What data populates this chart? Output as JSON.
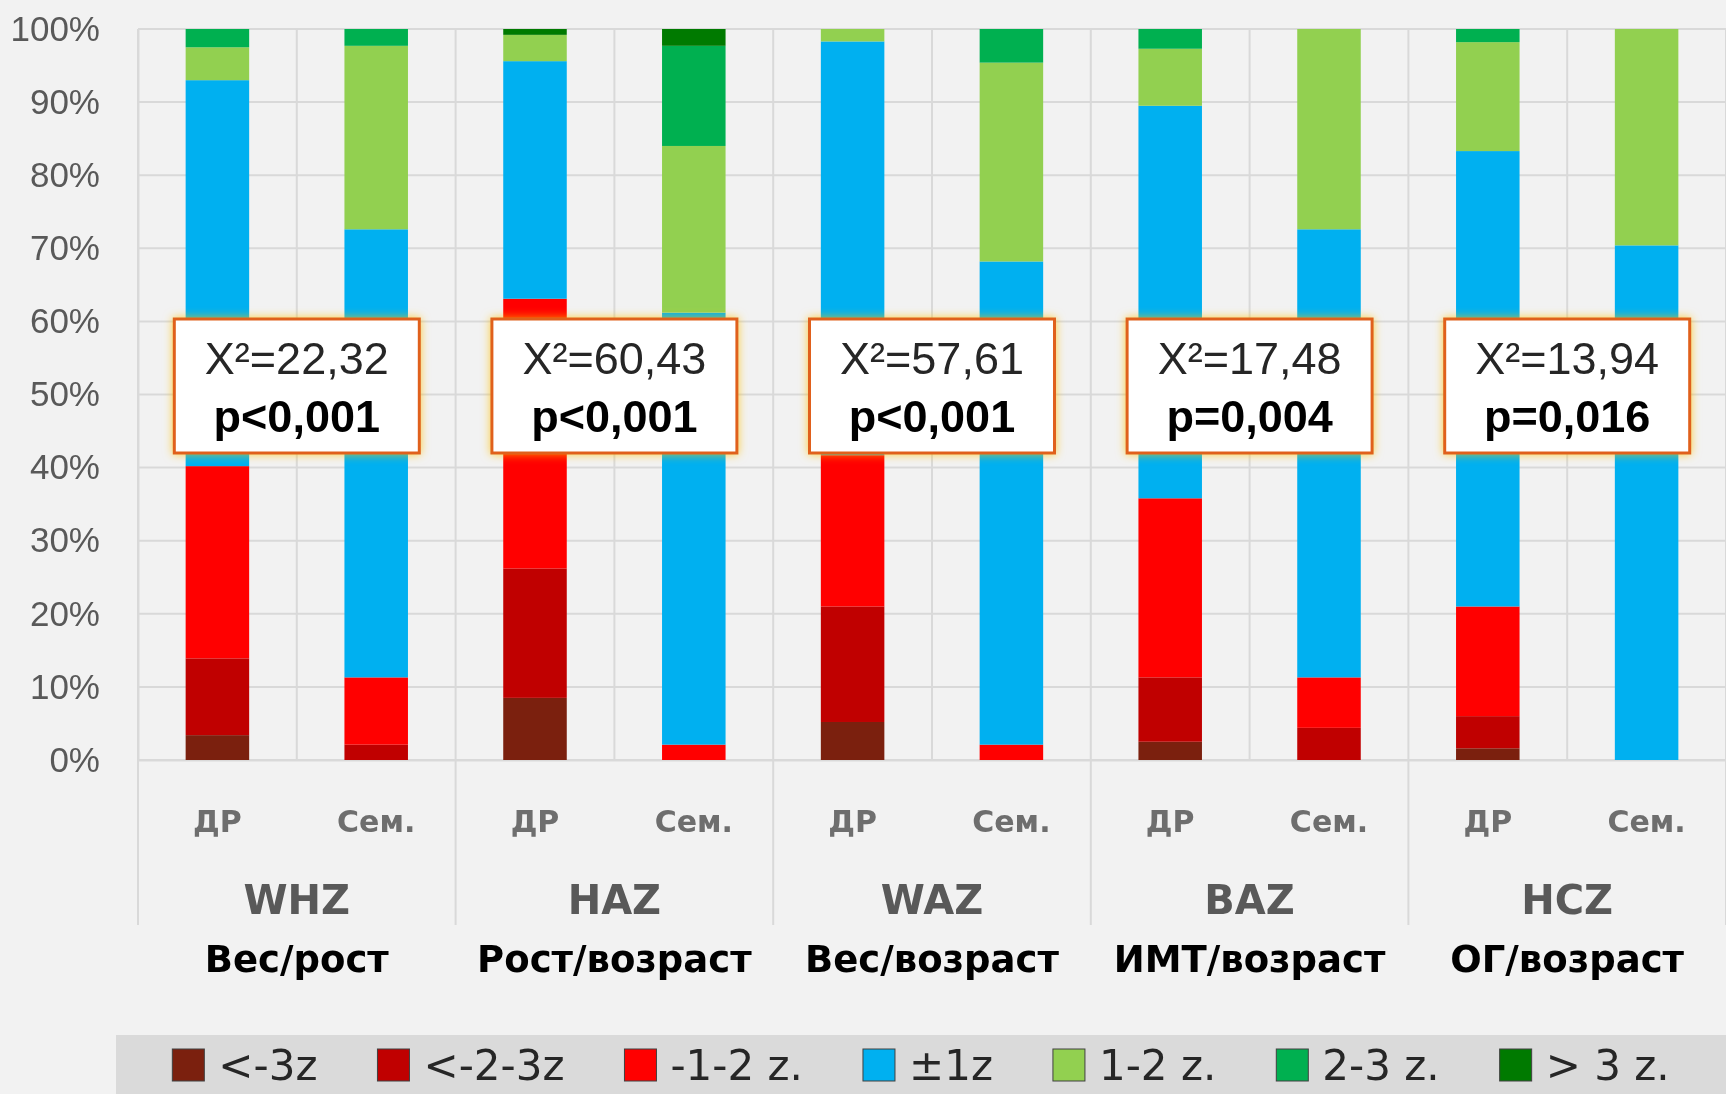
{
  "chart_data": {
    "type": "bar",
    "stacked": true,
    "categories": [
      "ДР",
      "Сем.",
      "ДР",
      "Сем.",
      "ДР",
      "Сем.",
      "ДР",
      "Сем.",
      "ДР",
      "Сем."
    ],
    "series": [
      {
        "name": "<-3z",
        "color": "#7b200e",
        "values": [
          3.4,
          0,
          8.5,
          0,
          5.2,
          0,
          2.5,
          0,
          1.6,
          0
        ]
      },
      {
        "name": "<-2-3z",
        "color": "#c00000",
        "values": [
          10.5,
          2.1,
          17.7,
          0,
          15.8,
          0,
          8.8,
          4.4,
          4.4,
          0
        ]
      },
      {
        "name": "-1-2 z.",
        "color": "#ff0000",
        "values": [
          26.3,
          9.2,
          36.9,
          2.1,
          20.7,
          2.1,
          24.5,
          6.9,
          15.0,
          0
        ]
      },
      {
        "name": "±1z",
        "color": "#00b0f0",
        "values": [
          52.8,
          61.3,
          32.5,
          59.1,
          56.6,
          66.1,
          53.7,
          61.3,
          62.3,
          70.4
        ]
      },
      {
        "name": "1-2 z.",
        "color": "#92d050",
        "values": [
          4.5,
          25.1,
          3.6,
          22.8,
          1.7,
          27.2,
          7.8,
          27.4,
          14.9,
          29.6
        ]
      },
      {
        "name": "2-3 z.",
        "color": "#00b050",
        "values": [
          2.5,
          2.3,
          0,
          13.7,
          0,
          4.6,
          2.7,
          0,
          1.8,
          0
        ]
      },
      {
        "name": "> 3 z.",
        "color": "#007a00",
        "values": [
          0,
          0,
          0.8,
          2.3,
          0,
          0,
          0,
          0,
          0,
          0
        ]
      }
    ],
    "ylim": [
      0,
      100
    ],
    "yticks": [
      {
        "value": 0,
        "label": "0%"
      },
      {
        "value": 10,
        "label": "10%"
      },
      {
        "value": 20,
        "label": "20%"
      },
      {
        "value": 30,
        "label": "30%"
      },
      {
        "value": 40,
        "label": "40%"
      },
      {
        "value": 50,
        "label": "50%"
      },
      {
        "value": 60,
        "label": "60%"
      },
      {
        "value": 70,
        "label": "70%"
      },
      {
        "value": 80,
        "label": "80%"
      },
      {
        "value": 90,
        "label": "90%"
      },
      {
        "value": 100,
        "label": "100%"
      }
    ],
    "grid": true,
    "legend": "bottom",
    "annotations": [
      "X²=22,32",
      "p<0,001",
      "WHZ",
      "Вес/рост",
      "X²=60,43",
      "p<0,001",
      "HAZ",
      "Рост/возраст",
      "X²=57,61",
      "p<0,001",
      "WAZ",
      "Вес/возраст",
      "X²=17,48",
      "p=0,004",
      "BAZ",
      "ИМТ/возраст",
      "X²=13,94",
      "p=0,016",
      "HCZ",
      "ОГ/возраст"
    ]
  }
}
